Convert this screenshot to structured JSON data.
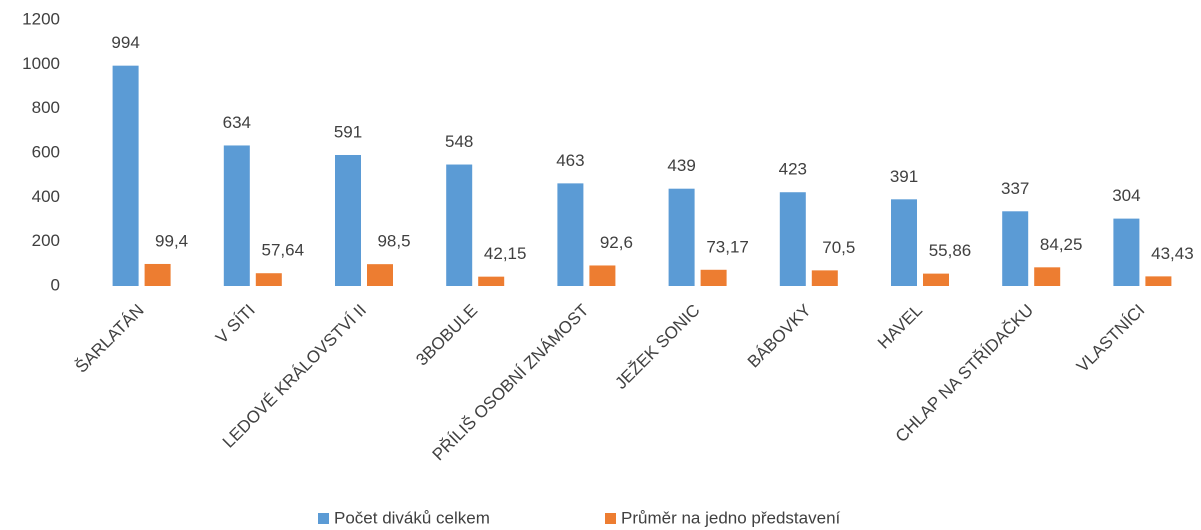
{
  "chart_data": {
    "type": "bar",
    "categories": [
      "ŠARLATÁN",
      "V SÍTI",
      "LEDOVÉ KRÁLOVSTVÍ II",
      "3BOBULE",
      "PŘÍLIŠ OSOBNÍ ZNÁMOST",
      "JEŽEK SONIC",
      "BÁBOVKY",
      "HAVEL",
      "CHLAP NA STŘÍDAČKU",
      "VLASTNÍCI"
    ],
    "series": [
      {
        "name": "Počet diváků celkem",
        "color": "#5b9bd5",
        "values": [
          994,
          634,
          591,
          548,
          463,
          439,
          423,
          391,
          337,
          304
        ]
      },
      {
        "name": "Průměr na jedno představení",
        "color": "#ed7d31",
        "values": [
          99.4,
          57.64,
          98.5,
          42.15,
          92.6,
          73.17,
          70.5,
          55.86,
          84.25,
          43.43
        ],
        "value_labels": [
          "99,4",
          "57,64",
          "98,5",
          "42,15",
          "92,6",
          "73,17",
          "70,5",
          "55,86",
          "84,25",
          "43,43"
        ]
      }
    ],
    "ylim": [
      0,
      1200
    ],
    "yticks": [
      0,
      200,
      400,
      600,
      800,
      1000,
      1200
    ],
    "grid": false,
    "legend": "bottom"
  }
}
